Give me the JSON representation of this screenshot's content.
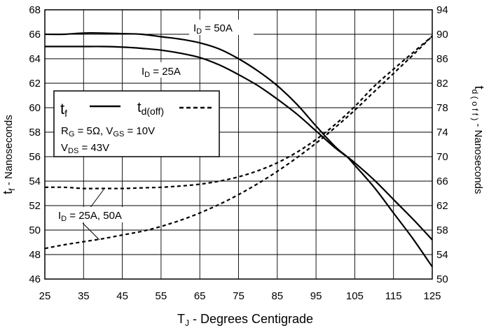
{
  "chart_data": {
    "type": "line",
    "x_axis": {
      "label_main": "T",
      "label_sub": "J",
      "label_rest": " - Degrees Centigrade",
      "range": [
        25,
        125
      ],
      "ticks": [
        "25",
        "35",
        "45",
        "55",
        "65",
        "75",
        "85",
        "95",
        "105",
        "115",
        "125"
      ]
    },
    "y_left": {
      "label_main": "t",
      "label_sub": "f",
      "label_rest": " - Nanoseconds",
      "range": [
        46,
        68
      ],
      "ticks": [
        "46",
        "48",
        "50",
        "52",
        "54",
        "56",
        "58",
        "60",
        "62",
        "64",
        "66",
        "68"
      ]
    },
    "y_right": {
      "label_main": "t",
      "label_sub": "d ( o f f )",
      "label_rest": " - Nanoseconds",
      "range": [
        50,
        94
      ],
      "ticks": [
        "50",
        "54",
        "58",
        "62",
        "66",
        "70",
        "74",
        "78",
        "82",
        "86",
        "90",
        "94"
      ]
    },
    "grid": true,
    "series": [
      {
        "name": "tf, ID = 50A",
        "axis": "left",
        "style": "solid",
        "x": [
          25,
          30,
          35,
          40,
          45,
          50,
          55,
          60,
          65,
          70,
          75,
          80,
          85,
          90,
          95,
          100,
          103,
          105,
          110,
          115,
          120,
          125
        ],
        "y": [
          66.0,
          66.0,
          66.1,
          66.1,
          66.05,
          66.0,
          65.8,
          65.6,
          65.3,
          64.8,
          64.0,
          63.0,
          61.8,
          60.3,
          58.5,
          56.8,
          56.0,
          55.3,
          53.5,
          51.4,
          49.3,
          47.0
        ]
      },
      {
        "name": "tf, ID = 25A",
        "axis": "left",
        "style": "solid",
        "x": [
          25,
          30,
          35,
          40,
          45,
          50,
          55,
          60,
          65,
          70,
          75,
          80,
          85,
          90,
          95,
          100,
          103,
          105,
          110,
          115,
          120,
          125
        ],
        "y": [
          65.0,
          65.0,
          65.0,
          65.0,
          64.95,
          64.85,
          64.7,
          64.45,
          64.1,
          63.5,
          62.7,
          61.8,
          60.7,
          59.5,
          58.1,
          56.7,
          56.0,
          55.5,
          54.1,
          52.5,
          50.9,
          49.2
        ]
      },
      {
        "name": "td(off), ID = 50A",
        "axis": "right",
        "style": "dashed",
        "x": [
          25,
          30,
          35,
          40,
          45,
          50,
          55,
          60,
          65,
          70,
          75,
          80,
          85,
          90,
          95,
          100,
          105,
          110,
          115,
          120,
          125
        ],
        "y": [
          65.0,
          65.0,
          64.8,
          64.8,
          64.8,
          64.9,
          65.0,
          65.2,
          65.5,
          66.0,
          66.7,
          67.7,
          69.0,
          70.7,
          72.8,
          75.3,
          78.2,
          81.5,
          84.3,
          87.0,
          89.7
        ]
      },
      {
        "name": "td(off), ID = 25A",
        "axis": "right",
        "style": "dashed",
        "x": [
          25,
          30,
          35,
          40,
          45,
          50,
          55,
          60,
          65,
          70,
          75,
          80,
          85,
          90,
          95,
          100,
          105,
          110,
          115,
          120,
          125
        ],
        "y": [
          55.0,
          55.6,
          56.1,
          56.6,
          57.2,
          57.8,
          58.6,
          59.6,
          60.8,
          62.2,
          63.8,
          65.6,
          67.6,
          69.8,
          72.2,
          74.8,
          77.6,
          80.6,
          83.6,
          86.6,
          89.7
        ]
      }
    ],
    "annotations": {
      "id50": {
        "main": "I",
        "sub": "D",
        "rest": " = 50A"
      },
      "id25": {
        "main": "I",
        "sub": "D",
        "rest": " = 25A"
      },
      "id_both": {
        "main": "I",
        "sub": "D",
        "rest": " = 25A, 50A"
      }
    },
    "legend": {
      "placement": "left",
      "tf_main": "t",
      "tf_sub": "f",
      "td_main": "t",
      "td_sub": "d(off)",
      "line1": {
        "a": "R",
        "a_sub": "G",
        "b": " = 5Ω,  V",
        "b_sub": "GS",
        "c": " = 10V"
      },
      "line2": {
        "a": "V",
        "a_sub": "DS",
        "b": " = 43V"
      }
    }
  }
}
